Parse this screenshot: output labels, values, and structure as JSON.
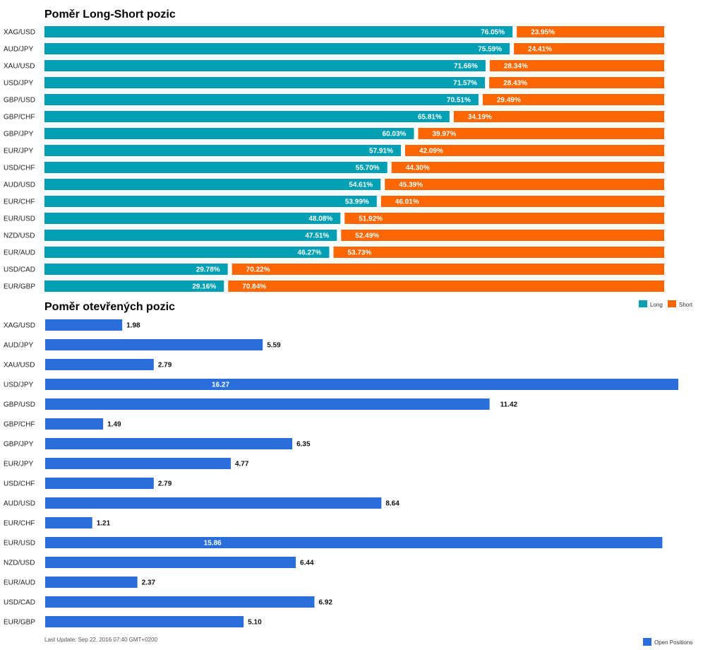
{
  "chart_data": [
    {
      "type": "bar",
      "orientation": "horizontal-stacked",
      "title": "Poměr Long-Short pozic",
      "categories": [
        "XAG/USD",
        "AUD/JPY",
        "XAU/USD",
        "USD/JPY",
        "GBP/USD",
        "GBP/CHF",
        "GBP/JPY",
        "EUR/JPY",
        "USD/CHF",
        "AUD/USD",
        "EUR/CHF",
        "EUR/USD",
        "NZD/USD",
        "EUR/AUD",
        "USD/CAD",
        "EUR/GBP"
      ],
      "series": [
        {
          "name": "Long",
          "color": "#00a0b4",
          "values": [
            76.05,
            75.59,
            71.66,
            71.57,
            70.51,
            65.81,
            60.03,
            57.91,
            55.7,
            54.61,
            53.99,
            48.08,
            47.51,
            46.27,
            29.78,
            29.16
          ],
          "labels": [
            "76.05%",
            "75.59%",
            "71.66%",
            "71.57%",
            "70.51%",
            "65.81%",
            "60.03%",
            "57.91%",
            "55.70%",
            "54.61%",
            "53.99%",
            "48.08%",
            "47.51%",
            "46.27%",
            "29.78%",
            "29.16%"
          ]
        },
        {
          "name": "Short",
          "color": "#ff6600",
          "values": [
            23.95,
            24.41,
            28.34,
            28.43,
            29.49,
            34.19,
            39.97,
            42.09,
            44.3,
            45.39,
            46.01,
            51.92,
            52.49,
            53.73,
            70.22,
            70.84
          ],
          "labels": [
            "23.95%",
            "24.41%",
            "28.34%",
            "28.43%",
            "29.49%",
            "34.19%",
            "39.97%",
            "42.09%",
            "44.30%",
            "45.39%",
            "46.01%",
            "51.92%",
            "52.49%",
            "53.73%",
            "70.22%",
            "70.84%"
          ]
        }
      ],
      "legend": {
        "placement": "top-right",
        "items": [
          {
            "label": "Long",
            "color": "#00a0b4"
          },
          {
            "label": "Short",
            "color": "#ff6600"
          }
        ]
      }
    },
    {
      "type": "bar",
      "orientation": "horizontal",
      "title": "Poměr otevřených pozic",
      "categories": [
        "XAG/USD",
        "AUD/JPY",
        "XAU/USD",
        "USD/JPY",
        "GBP/USD",
        "GBP/CHF",
        "GBP/JPY",
        "EUR/JPY",
        "USD/CHF",
        "AUD/USD",
        "EUR/CHF",
        "EUR/USD",
        "NZD/USD",
        "EUR/AUD",
        "USD/CAD",
        "EUR/GBP"
      ],
      "series": [
        {
          "name": "Open Positions",
          "color": "#2a6edb",
          "values": [
            1.98,
            5.59,
            2.79,
            16.27,
            11.42,
            1.49,
            6.35,
            4.77,
            2.79,
            8.64,
            1.21,
            15.86,
            6.44,
            2.37,
            6.92,
            5.1
          ],
          "labels": [
            "1.98",
            "5.59",
            "2.79",
            "16.27",
            "11.42",
            "1.49",
            "6.35",
            "4.77",
            "2.79",
            "8.64",
            "1.21",
            "15.86",
            "6.44",
            "2.37",
            "6.92",
            "5.10"
          ]
        }
      ],
      "xlim": [
        0,
        16.27
      ],
      "legend": {
        "placement": "bottom-right",
        "items": [
          {
            "label": "Open Positions",
            "color": "#2a6edb"
          }
        ]
      },
      "footer": "Last Update: Sep 22, 2016 07:40 GMT+0200"
    }
  ]
}
